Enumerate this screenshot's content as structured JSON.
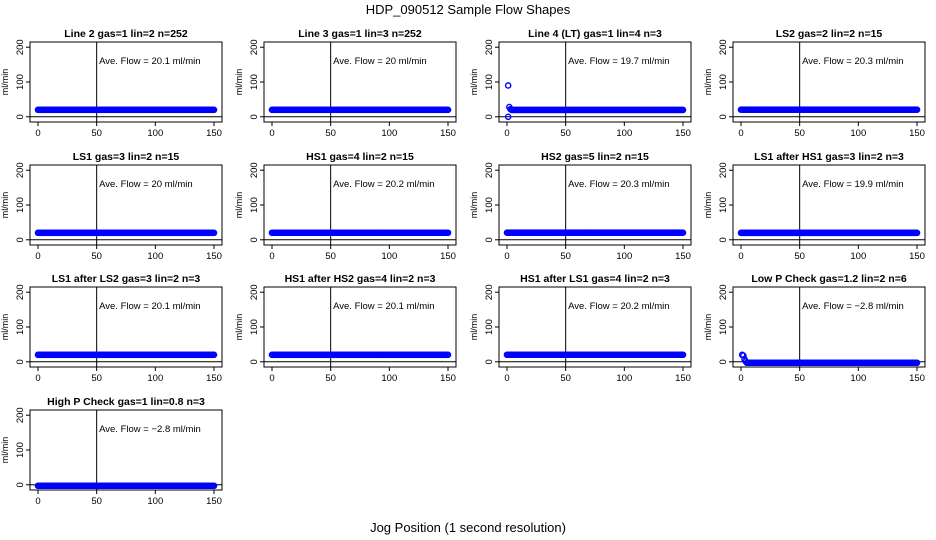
{
  "figure": {
    "title": "HDP_090512  Sample Flow Shapes",
    "xlabel": "Jog Position (1 second resolution)"
  },
  "colors": {
    "points": "#0000ff",
    "axes": "#000000",
    "background": "#ffffff"
  },
  "chart_data": [
    {
      "type": "scatter",
      "title": "Line 2 gas=1 lin=2 n=252",
      "ylabel": "ml/min",
      "annotation": "Ave. Flow =  20.1  ml/min",
      "xlim": [
        0,
        150
      ],
      "ylim": [
        -15,
        215
      ],
      "x_ticks": [
        0,
        50,
        100,
        150
      ],
      "y_ticks": [
        0,
        100,
        200
      ],
      "vline": 50,
      "hline": 0,
      "series": [
        {
          "x_range": [
            0,
            150
          ],
          "y": 20.1
        }
      ]
    },
    {
      "type": "scatter",
      "title": "Line 3 gas=1 lin=3 n=252",
      "ylabel": "ml/min",
      "annotation": "Ave. Flow =  20  ml/min",
      "xlim": [
        0,
        150
      ],
      "ylim": [
        -15,
        215
      ],
      "x_ticks": [
        0,
        50,
        100,
        150
      ],
      "y_ticks": [
        0,
        100,
        200
      ],
      "vline": 50,
      "hline": 0,
      "series": [
        {
          "x_range": [
            0,
            150
          ],
          "y": 20
        }
      ]
    },
    {
      "type": "scatter",
      "title": "Line 4 (LT) gas=1 lin=4 n=3",
      "ylabel": "ml/min",
      "annotation": "Ave. Flow =  19.7  ml/min",
      "xlim": [
        0,
        150
      ],
      "ylim": [
        -15,
        215
      ],
      "x_ticks": [
        0,
        50,
        100,
        150
      ],
      "y_ticks": [
        0,
        100,
        200
      ],
      "vline": 50,
      "hline": 0,
      "series": [
        {
          "x_range": [
            4,
            150
          ],
          "y": 19.7,
          "points": [
            {
              "x": 1,
              "y": 90
            },
            {
              "x": 1,
              "y": 0
            },
            {
              "x": 2,
              "y": 28
            },
            {
              "x": 3,
              "y": 22
            }
          ]
        }
      ]
    },
    {
      "type": "scatter",
      "title": "LS2 gas=2 lin=2 n=15",
      "ylabel": "ml/min",
      "annotation": "Ave. Flow =  20.3  ml/min",
      "xlim": [
        0,
        150
      ],
      "ylim": [
        -15,
        215
      ],
      "x_ticks": [
        0,
        50,
        100,
        150
      ],
      "y_ticks": [
        0,
        100,
        200
      ],
      "vline": 50,
      "hline": 0,
      "series": [
        {
          "x_range": [
            0,
            150
          ],
          "y": 20.3
        }
      ]
    },
    {
      "type": "scatter",
      "title": "LS1 gas=3 lin=2 n=15",
      "ylabel": "ml/min",
      "annotation": "Ave. Flow =  20  ml/min",
      "xlim": [
        0,
        150
      ],
      "ylim": [
        -15,
        215
      ],
      "x_ticks": [
        0,
        50,
        100,
        150
      ],
      "y_ticks": [
        0,
        100,
        200
      ],
      "vline": 50,
      "hline": 0,
      "series": [
        {
          "x_range": [
            0,
            150
          ],
          "y": 20
        }
      ]
    },
    {
      "type": "scatter",
      "title": "HS1 gas=4 lin=2 n=15",
      "ylabel": "ml/min",
      "annotation": "Ave. Flow =  20.2  ml/min",
      "xlim": [
        0,
        150
      ],
      "ylim": [
        -15,
        215
      ],
      "x_ticks": [
        0,
        50,
        100,
        150
      ],
      "y_ticks": [
        0,
        100,
        200
      ],
      "vline": 50,
      "hline": 0,
      "series": [
        {
          "x_range": [
            0,
            150
          ],
          "y": 20.2
        }
      ]
    },
    {
      "type": "scatter",
      "title": "HS2 gas=5 lin=2 n=15",
      "ylabel": "ml/min",
      "annotation": "Ave. Flow =  20.3  ml/min",
      "xlim": [
        0,
        150
      ],
      "ylim": [
        -15,
        215
      ],
      "x_ticks": [
        0,
        50,
        100,
        150
      ],
      "y_ticks": [
        0,
        100,
        200
      ],
      "vline": 50,
      "hline": 0,
      "series": [
        {
          "x_range": [
            0,
            150
          ],
          "y": 20.3
        }
      ]
    },
    {
      "type": "scatter",
      "title": "LS1 after HS1 gas=3 lin=2 n=3",
      "ylabel": "ml/min",
      "annotation": "Ave. Flow =  19.9  ml/min",
      "xlim": [
        0,
        150
      ],
      "ylim": [
        -15,
        215
      ],
      "x_ticks": [
        0,
        50,
        100,
        150
      ],
      "y_ticks": [
        0,
        100,
        200
      ],
      "vline": 50,
      "hline": 0,
      "series": [
        {
          "x_range": [
            0,
            150
          ],
          "y": 19.9
        }
      ]
    },
    {
      "type": "scatter",
      "title": "LS1 after LS2 gas=3 lin=2 n=3",
      "ylabel": "ml/min",
      "annotation": "Ave. Flow =  20.1  ml/min",
      "xlim": [
        0,
        150
      ],
      "ylim": [
        -15,
        215
      ],
      "x_ticks": [
        0,
        50,
        100,
        150
      ],
      "y_ticks": [
        0,
        100,
        200
      ],
      "vline": 50,
      "hline": 0,
      "series": [
        {
          "x_range": [
            0,
            150
          ],
          "y": 20.1
        }
      ]
    },
    {
      "type": "scatter",
      "title": "HS1 after HS2 gas=4 lin=2 n=3",
      "ylabel": "ml/min",
      "annotation": "Ave. Flow =  20.1  ml/min",
      "xlim": [
        0,
        150
      ],
      "ylim": [
        -15,
        215
      ],
      "x_ticks": [
        0,
        50,
        100,
        150
      ],
      "y_ticks": [
        0,
        100,
        200
      ],
      "vline": 50,
      "hline": 0,
      "series": [
        {
          "x_range": [
            0,
            150
          ],
          "y": 20.1
        }
      ]
    },
    {
      "type": "scatter",
      "title": "HS1 after LS1 gas=4 lin=2 n=3",
      "ylabel": "ml/min",
      "annotation": "Ave. Flow =  20.2  ml/min",
      "xlim": [
        0,
        150
      ],
      "ylim": [
        -15,
        215
      ],
      "x_ticks": [
        0,
        50,
        100,
        150
      ],
      "y_ticks": [
        0,
        100,
        200
      ],
      "vline": 50,
      "hline": 0,
      "series": [
        {
          "x_range": [
            0,
            150
          ],
          "y": 20.2
        }
      ]
    },
    {
      "type": "scatter",
      "title": "Low P Check gas=1.2 lin=2 n=6",
      "ylabel": "ml/min",
      "annotation": "Ave. Flow =  −2.8  ml/min",
      "xlim": [
        0,
        150
      ],
      "ylim": [
        -15,
        215
      ],
      "x_ticks": [
        0,
        50,
        100,
        150
      ],
      "y_ticks": [
        0,
        100,
        200
      ],
      "vline": 50,
      "hline": 0,
      "series": [
        {
          "x_range": [
            5,
            150
          ],
          "y": -2.8,
          "points": [
            {
              "x": 1,
              "y": 20
            },
            {
              "x": 2,
              "y": 18
            },
            {
              "x": 3,
              "y": 8
            },
            {
              "x": 4,
              "y": 1
            }
          ]
        }
      ]
    },
    {
      "type": "scatter",
      "title": "High P Check gas=1 lin=0.8 n=3",
      "ylabel": "ml/min",
      "annotation": "Ave. Flow =  −2.8  ml/min",
      "xlim": [
        0,
        150
      ],
      "ylim": [
        -15,
        215
      ],
      "x_ticks": [
        0,
        50,
        100,
        150
      ],
      "y_ticks": [
        0,
        100,
        200
      ],
      "vline": 50,
      "hline": 0,
      "series": [
        {
          "x_range": [
            0,
            150
          ],
          "y": -2.8
        }
      ]
    }
  ]
}
